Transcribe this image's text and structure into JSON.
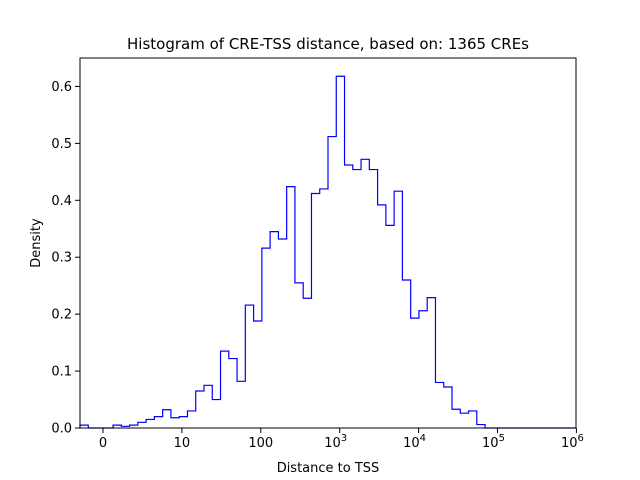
{
  "chart_data": {
    "type": "histogram",
    "title": "Histogram of CRE-TSS distance, based on: 1365 CREs",
    "xlabel": "Distance to TSS",
    "ylabel": "Density",
    "x_scale": "log (first tick at 0)",
    "x_ticks": [
      {
        "value": 0,
        "label": "0"
      },
      {
        "value": 10,
        "label": "10"
      },
      {
        "value": 100,
        "label": "100"
      },
      {
        "value": 1000,
        "label": "10",
        "exp": "3"
      },
      {
        "value": 10000,
        "label": "10",
        "exp": "4"
      },
      {
        "value": 100000,
        "label": "10",
        "exp": "5"
      },
      {
        "value": 1000000,
        "label": "10",
        "exp": "6"
      }
    ],
    "y_ticks": [
      "0.0",
      "0.1",
      "0.2",
      "0.3",
      "0.4",
      "0.5",
      "0.6"
    ],
    "ylim": [
      0,
      0.65
    ],
    "grid": false,
    "line_color": "#0000ff",
    "densities": [
      0.005,
      0.0,
      0.0,
      0.0,
      0.005,
      0.003,
      0.005,
      0.01,
      0.015,
      0.02,
      0.032,
      0.018,
      0.02,
      0.03,
      0.065,
      0.075,
      0.05,
      0.135,
      0.122,
      0.082,
      0.216,
      0.188,
      0.316,
      0.345,
      0.332,
      0.424,
      0.255,
      0.228,
      0.412,
      0.42,
      0.512,
      0.618,
      0.462,
      0.454,
      0.472,
      0.454,
      0.392,
      0.356,
      0.416,
      0.26,
      0.193,
      0.206,
      0.229,
      0.08,
      0.072,
      0.033,
      0.026,
      0.03,
      0.006,
      0.0,
      0.0,
      0.0,
      0.0,
      0.0,
      0.0,
      0.0,
      0.0,
      0.0,
      0.0,
      0.0
    ]
  }
}
